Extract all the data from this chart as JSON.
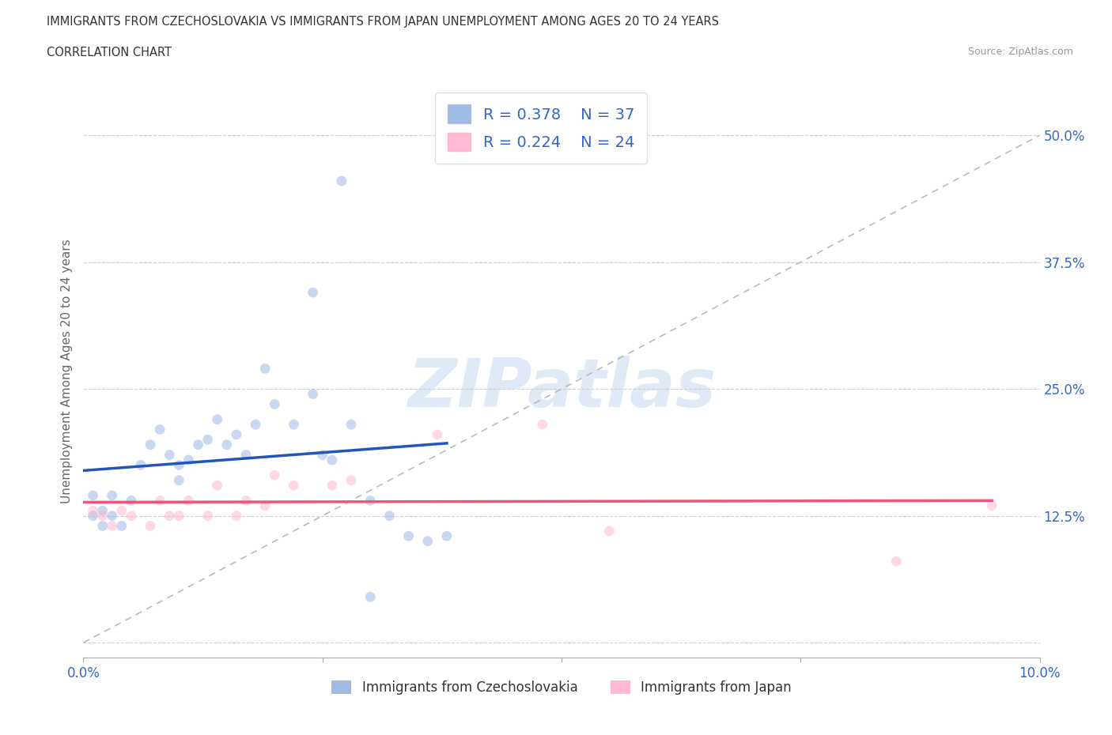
{
  "title_line1": "IMMIGRANTS FROM CZECHOSLOVAKIA VS IMMIGRANTS FROM JAPAN UNEMPLOYMENT AMONG AGES 20 TO 24 YEARS",
  "title_line2": "CORRELATION CHART",
  "source_text": "Source: ZipAtlas.com",
  "ylabel": "Unemployment Among Ages 20 to 24 years",
  "xlim": [
    0.0,
    0.1
  ],
  "ylim": [
    -0.015,
    0.55
  ],
  "plot_ylim": [
    0.0,
    0.55
  ],
  "xticks": [
    0.0,
    0.025,
    0.05,
    0.075,
    0.1
  ],
  "xtick_labels": [
    "0.0%",
    "",
    "",
    "",
    "10.0%"
  ],
  "ytick_positions": [
    0.0,
    0.125,
    0.25,
    0.375,
    0.5
  ],
  "ytick_labels": [
    "",
    "12.5%",
    "25.0%",
    "37.5%",
    "50.0%"
  ],
  "background_color": "#ffffff",
  "watermark_text": "ZIPatlas",
  "legend_R1": "0.378",
  "legend_N1": "37",
  "legend_R2": "0.224",
  "legend_N2": "24",
  "color_czecho": "#88aadd",
  "color_japan": "#ffaacc",
  "trendline_color_czecho": "#2255bb",
  "trendline_color_japan": "#ee5577",
  "diag_line_color": "#bbbbbb",
  "czecho_x": [
    0.001,
    0.001,
    0.002,
    0.002,
    0.003,
    0.003,
    0.004,
    0.005,
    0.006,
    0.007,
    0.008,
    0.009,
    0.01,
    0.01,
    0.011,
    0.012,
    0.013,
    0.014,
    0.015,
    0.016,
    0.017,
    0.018,
    0.019,
    0.02,
    0.022,
    0.024,
    0.025,
    0.026,
    0.028,
    0.03,
    0.032,
    0.034,
    0.036,
    0.038,
    0.027,
    0.024,
    0.03
  ],
  "czecho_y": [
    0.145,
    0.125,
    0.13,
    0.115,
    0.145,
    0.125,
    0.115,
    0.14,
    0.175,
    0.195,
    0.21,
    0.185,
    0.175,
    0.16,
    0.18,
    0.195,
    0.2,
    0.22,
    0.195,
    0.205,
    0.185,
    0.215,
    0.27,
    0.235,
    0.215,
    0.245,
    0.185,
    0.18,
    0.215,
    0.14,
    0.125,
    0.105,
    0.1,
    0.105,
    0.455,
    0.345,
    0.045
  ],
  "japan_x": [
    0.001,
    0.002,
    0.003,
    0.004,
    0.005,
    0.007,
    0.008,
    0.009,
    0.01,
    0.011,
    0.013,
    0.014,
    0.016,
    0.017,
    0.019,
    0.02,
    0.022,
    0.026,
    0.028,
    0.037,
    0.048,
    0.055,
    0.085,
    0.095
  ],
  "japan_y": [
    0.13,
    0.125,
    0.115,
    0.13,
    0.125,
    0.115,
    0.14,
    0.125,
    0.125,
    0.14,
    0.125,
    0.155,
    0.125,
    0.14,
    0.135,
    0.165,
    0.155,
    0.155,
    0.16,
    0.205,
    0.215,
    0.11,
    0.08,
    0.135
  ],
  "marker_size": 85,
  "marker_alpha": 0.45,
  "grid_color": "#cccccc",
  "grid_alpha": 0.9
}
